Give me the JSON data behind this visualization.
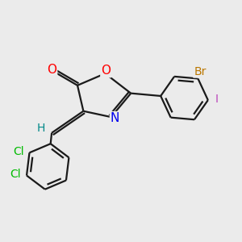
{
  "background_color": "#ebebeb",
  "bond_color": "#1a1a1a",
  "atom_colors": {
    "O": "#ff0000",
    "N": "#0000ee",
    "Cl": "#00bb00",
    "Br": "#bb7700",
    "I": "#bb44bb",
    "H": "#008888",
    "C": "#1a1a1a"
  },
  "font_size": 10,
  "lw": 1.6
}
